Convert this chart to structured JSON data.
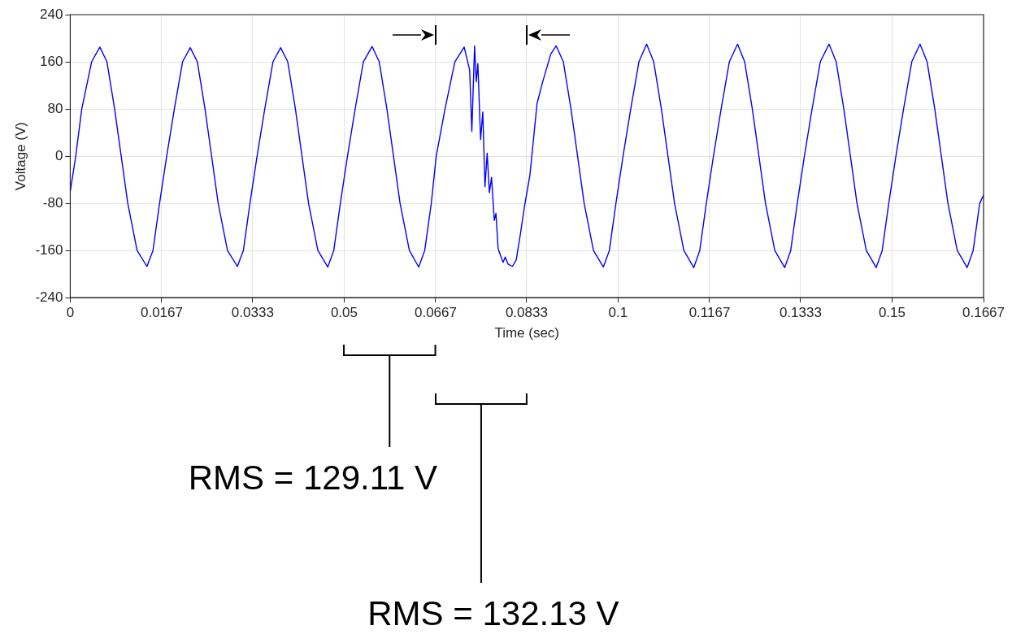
{
  "chart_data": {
    "type": "line",
    "xlabel": "Time (sec)",
    "ylabel": "Voltage (V)",
    "xlim": [
      0,
      0.1667
    ],
    "xticks": [
      0,
      0.0167,
      0.0333,
      0.05,
      0.0667,
      0.0833,
      0.1,
      0.1167,
      0.1333,
      0.15,
      0.1667
    ],
    "ylim": [
      -240,
      240
    ],
    "yticks": [
      -240,
      -160,
      -80,
      0,
      80,
      160,
      240
    ],
    "grid": true,
    "legend": false,
    "marker": "none",
    "line_style": "solid",
    "series": [
      {
        "color": "#0000ff",
        "x": [
          0,
          0.001,
          0.0021,
          0.0039,
          0.0054,
          0.0067,
          0.0081,
          0.0093,
          0.0105,
          0.0122,
          0.014,
          0.0151,
          0.0163,
          0.0176,
          0.019,
          0.0205,
          0.0219,
          0.0232,
          0.0246,
          0.0258,
          0.027,
          0.0287,
          0.0305,
          0.0316,
          0.0328,
          0.0341,
          0.0355,
          0.037,
          0.0384,
          0.0397,
          0.0411,
          0.0423,
          0.0435,
          0.0452,
          0.047,
          0.0481,
          0.0493,
          0.0506,
          0.052,
          0.0535,
          0.0551,
          0.0564,
          0.0578,
          0.059,
          0.0602,
          0.0619,
          0.0636,
          0.0647,
          0.0659,
          0.0668,
          0.0684,
          0.0702,
          0.0719,
          0.0729,
          0.0733,
          0.0738,
          0.0741,
          0.0744,
          0.0749,
          0.0753,
          0.0757,
          0.0761,
          0.0765,
          0.0769,
          0.0774,
          0.0777,
          0.0781,
          0.079,
          0.0794,
          0.0799,
          0.0807,
          0.0814,
          0.0822,
          0.0829,
          0.0839,
          0.0852,
          0.0862,
          0.0877,
          0.0887,
          0.09,
          0.0914,
          0.0926,
          0.0938,
          0.0955,
          0.0973,
          0.0984,
          0.0996,
          0.1009,
          0.1023,
          0.1038,
          0.1052,
          0.1065,
          0.1079,
          0.1091,
          0.1103,
          0.112,
          0.1138,
          0.1149,
          0.1161,
          0.1174,
          0.1188,
          0.1203,
          0.1218,
          0.1231,
          0.1245,
          0.1257,
          0.1269,
          0.1286,
          0.1304,
          0.1315,
          0.1327,
          0.134,
          0.1354,
          0.1369,
          0.1385,
          0.1398,
          0.1412,
          0.1424,
          0.1436,
          0.1453,
          0.1471,
          0.1482,
          0.1494,
          0.1507,
          0.1521,
          0.1536,
          0.1551,
          0.1564,
          0.1578,
          0.159,
          0.1602,
          0.1619,
          0.1637,
          0.1648,
          0.166,
          0.1667
        ],
        "values": [
          -60,
          0,
          80,
          160,
          185,
          160,
          80,
          0,
          -80,
          -160,
          -187,
          -160,
          -80,
          0,
          80,
          160,
          184,
          160,
          80,
          0,
          -80,
          -160,
          -187,
          -160,
          -80,
          0,
          80,
          160,
          184,
          160,
          80,
          0,
          -80,
          -160,
          -188,
          -160,
          -80,
          0,
          80,
          160,
          186,
          160,
          80,
          0,
          -80,
          -160,
          -188,
          -160,
          -80,
          0,
          80,
          160,
          185,
          146,
          42,
          187,
          126,
          157,
          28,
          75,
          -52,
          5,
          -62,
          -36,
          -109,
          -97,
          -157,
          -180,
          -171,
          -183,
          -187,
          -176,
          -130,
          -86,
          -32,
          89,
          125,
          173,
          187,
          160,
          80,
          0,
          -80,
          -160,
          -188,
          -160,
          -80,
          0,
          80,
          160,
          190,
          160,
          80,
          0,
          -80,
          -160,
          -189,
          -160,
          -80,
          0,
          80,
          160,
          190,
          160,
          80,
          0,
          -80,
          -160,
          -189,
          -160,
          -80,
          0,
          80,
          160,
          190,
          160,
          80,
          0,
          -80,
          -160,
          -189,
          -160,
          -80,
          0,
          80,
          160,
          190,
          160,
          80,
          0,
          -80,
          -160,
          -189,
          -160,
          -80,
          -66
        ]
      }
    ],
    "annotations": [
      "RMS = 129.11 V",
      "RMS = 132.13 V"
    ]
  }
}
